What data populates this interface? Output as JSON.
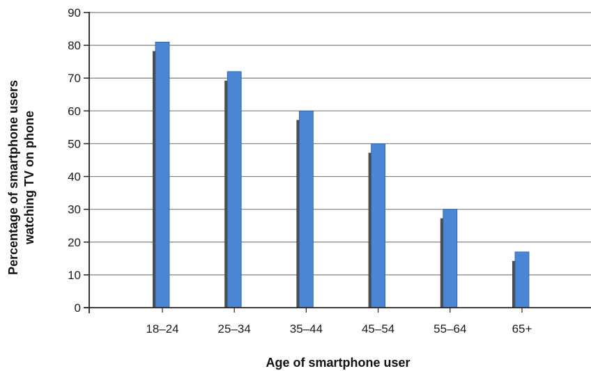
{
  "chart_data": {
    "type": "bar",
    "title": "",
    "xlabel": "Age of smartphone user",
    "ylabel_lines": [
      "Percentage of smartphone users",
      "watching TV on phone"
    ],
    "categories": [
      "18–24",
      "25–34",
      "35–44",
      "45–54",
      "55–64",
      "65+"
    ],
    "values": [
      81,
      72,
      60,
      50,
      30,
      17
    ],
    "ylim": [
      0,
      90
    ],
    "yticks": [
      0,
      10,
      20,
      30,
      40,
      50,
      60,
      70,
      80,
      90
    ],
    "grid": true,
    "legend": "none",
    "colors": {
      "bar": "#4a86d4",
      "bar_edge": "#2f5e9e",
      "bar_shadow": "#4d4d4d",
      "grid": "#808080",
      "axis": "#222222"
    }
  }
}
